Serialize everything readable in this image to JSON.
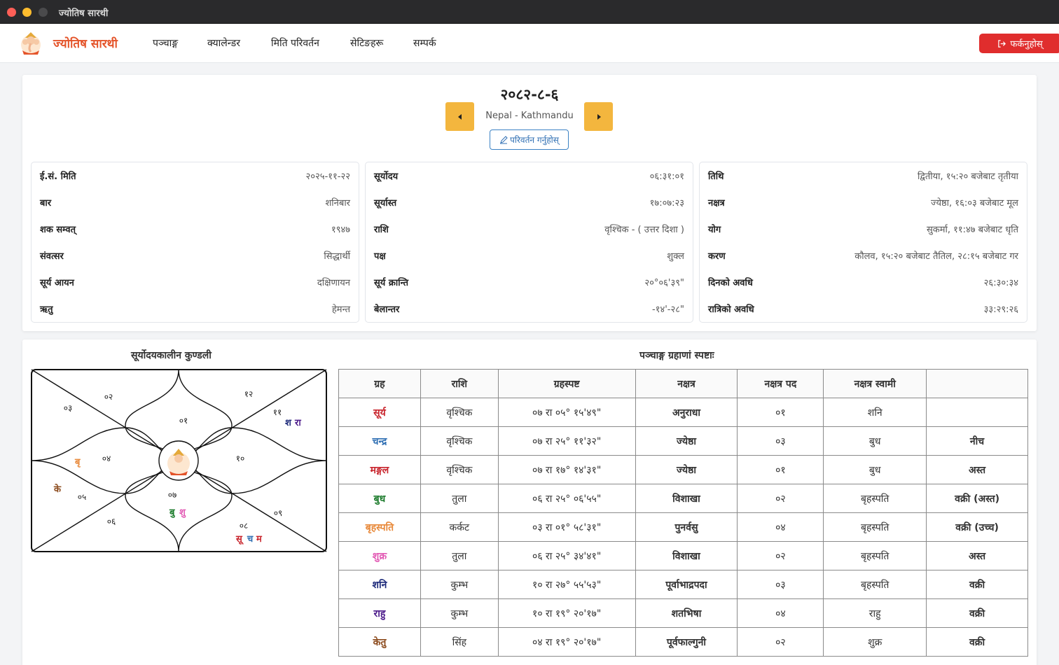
{
  "window": {
    "title": "ज्योतिष सारथी"
  },
  "navbar": {
    "brand": "ज्योतिष सारथी",
    "links": [
      "पञ्चाङ्ग",
      "क्यालेन्डर",
      "मिति परिवर्तन",
      "सेटिङहरू",
      "सम्पर्क"
    ],
    "back_label": "फर्कनुहोस्"
  },
  "header": {
    "date": "२०८२-८-६",
    "location": "Nepal - Kathmandu",
    "change_label": "परिवर्तन गर्नुहोस्"
  },
  "info": {
    "col1": [
      {
        "label": "ई.सं. मिति",
        "value": "२०२५-११-२२"
      },
      {
        "label": "बार",
        "value": "शनिबार"
      },
      {
        "label": "शक सम्वत्",
        "value": "१९४७"
      },
      {
        "label": "संवत्सर",
        "value": "सिद्धार्थी"
      },
      {
        "label": "सूर्य आयन",
        "value": "दक्षिणायन"
      },
      {
        "label": "ऋतु",
        "value": "हेमन्त"
      }
    ],
    "col2": [
      {
        "label": "सूर्योदय",
        "value": "०६:३१:०१"
      },
      {
        "label": "सूर्यास्त",
        "value": "१७:०७:२३"
      },
      {
        "label": "राशि",
        "value": "वृश्चिक - ( उत्तर दिशा )"
      },
      {
        "label": "पक्ष",
        "value": "शुक्ल"
      },
      {
        "label": "सूर्य क्रान्ति",
        "value": "२०°०६'३९\""
      },
      {
        "label": "बेलान्तर",
        "value": "-१४'-२८\""
      }
    ],
    "col3": [
      {
        "label": "तिथि",
        "value": "द्वितीया, १५:२० बजेबाट तृतीया"
      },
      {
        "label": "नक्षत्र",
        "value": "ज्येष्ठा, १६:०३ बजेबाट मूल"
      },
      {
        "label": "योग",
        "value": "सुकर्मा, ११:४७ बजेबाट धृति"
      },
      {
        "label": "करण",
        "value": "कौलव, १५:२० बजेबाट तैतिल, २८:१५ बजेबाट गर"
      },
      {
        "label": "दिनको अवधि",
        "value": "२६:३०:३४"
      },
      {
        "label": "रात्रिको अवधि",
        "value": "३३:२९:२६"
      }
    ]
  },
  "kundali": {
    "title": "सूर्योदयकालीन कुण्डली",
    "houses": [
      "०१",
      "०२",
      "०३",
      "०४",
      "०५",
      "०६",
      "०७",
      "०८",
      "०९",
      "१०",
      "११",
      "१२"
    ],
    "planets": {
      "h4": [
        {
          "t": "बृ",
          "c": "#e8893a"
        }
      ],
      "h5": [
        {
          "t": "के",
          "c": "#8b4a1c"
        }
      ],
      "h7": [
        {
          "t": "बु",
          "c": "#1a7a2a"
        },
        {
          "t": "शु",
          "c": "#e25ab4"
        }
      ],
      "h8": [
        {
          "t": "सू",
          "c": "#c8242c"
        },
        {
          "t": "च",
          "c": "#2f6fb3"
        },
        {
          "t": "म",
          "c": "#c8242c"
        }
      ],
      "h11": [
        {
          "t": "श",
          "c": "#1d2a7a"
        },
        {
          "t": "रा",
          "c": "#4b1a8a"
        }
      ]
    }
  },
  "graha_table": {
    "title": "पञ्चाङ्ग ग्रहाणां स्पष्टाः",
    "headers": [
      "ग्रह",
      "राशि",
      "ग्रहस्पष्ट",
      "नक्षत्र",
      "नक्षत्र पद",
      "नक्षत्र स्वामी",
      ""
    ],
    "rows": [
      {
        "graha": "सूर्य",
        "color": "#c8242c",
        "rashi": "वृश्चिक",
        "spasht": "०७ रा ०५° १५'४९\"",
        "nakshatra": "अनुराधा",
        "pad": "०१",
        "swami": "शनि",
        "status": ""
      },
      {
        "graha": "चन्द्र",
        "color": "#2f6fb3",
        "rashi": "वृश्चिक",
        "spasht": "०७ रा २५° ११'३२\"",
        "nakshatra": "ज्येष्ठा",
        "pad": "०३",
        "swami": "बुध",
        "status": "नीच"
      },
      {
        "graha": "मङ्गल",
        "color": "#c8242c",
        "rashi": "वृश्चिक",
        "spasht": "०७ रा १७° १४'३१\"",
        "nakshatra": "ज्येष्ठा",
        "pad": "०१",
        "swami": "बुध",
        "status": "अस्त"
      },
      {
        "graha": "बुध",
        "color": "#1a7a2a",
        "rashi": "तुला",
        "spasht": "०६ रा २५° ०६'५५\"",
        "nakshatra": "विशाखा",
        "pad": "०२",
        "swami": "बृहस्पति",
        "status": "वक्री (अस्त)"
      },
      {
        "graha": "बृहस्पति",
        "color": "#e8893a",
        "rashi": "कर्कट",
        "spasht": "०३ रा ०१° ५८'३१\"",
        "nakshatra": "पुनर्वसु",
        "pad": "०४",
        "swami": "बृहस्पति",
        "status": "वक्री (उच्च)"
      },
      {
        "graha": "शुक्र",
        "color": "#e25ab4",
        "rashi": "तुला",
        "spasht": "०६ रा २५° ३४'४१\"",
        "nakshatra": "विशाखा",
        "pad": "०२",
        "swami": "बृहस्पति",
        "status": "अस्त"
      },
      {
        "graha": "शनि",
        "color": "#1d2a7a",
        "rashi": "कुम्भ",
        "spasht": "१० रा २७° ५५'५३\"",
        "nakshatra": "पूर्वाभाद्रपदा",
        "pad": "०३",
        "swami": "बृहस्पति",
        "status": "वक्री"
      },
      {
        "graha": "राहु",
        "color": "#4b1a8a",
        "rashi": "कुम्भ",
        "spasht": "१० रा १९° २०'१७\"",
        "nakshatra": "शतभिषा",
        "pad": "०४",
        "swami": "राहु",
        "status": "वक्री"
      },
      {
        "graha": "केतु",
        "color": "#8b4a1c",
        "rashi": "सिंह",
        "spasht": "०४ रा १९° २०'१७\"",
        "nakshatra": "पूर्वफाल्गुनी",
        "pad": "०२",
        "swami": "शुक्र",
        "status": "वक्री"
      }
    ]
  }
}
